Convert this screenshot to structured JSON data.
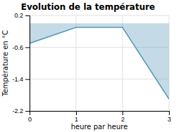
{
  "chart_data": {
    "type": "area",
    "title": "Evolution de la température",
    "x_label": "heure par heure",
    "y_label": "Température en °C",
    "x": [
      0,
      1,
      2,
      3
    ],
    "values": [
      -0.5,
      -0.1,
      -0.1,
      -1.9
    ],
    "color": "#5599bb",
    "xlim": [
      0,
      3
    ],
    "ylim": [
      -2.2,
      0.2
    ],
    "xticks": [
      0,
      1,
      2,
      3
    ],
    "yticks": [
      0.2,
      -0.6,
      -1.4,
      -2.2
    ],
    "grid": true
  }
}
